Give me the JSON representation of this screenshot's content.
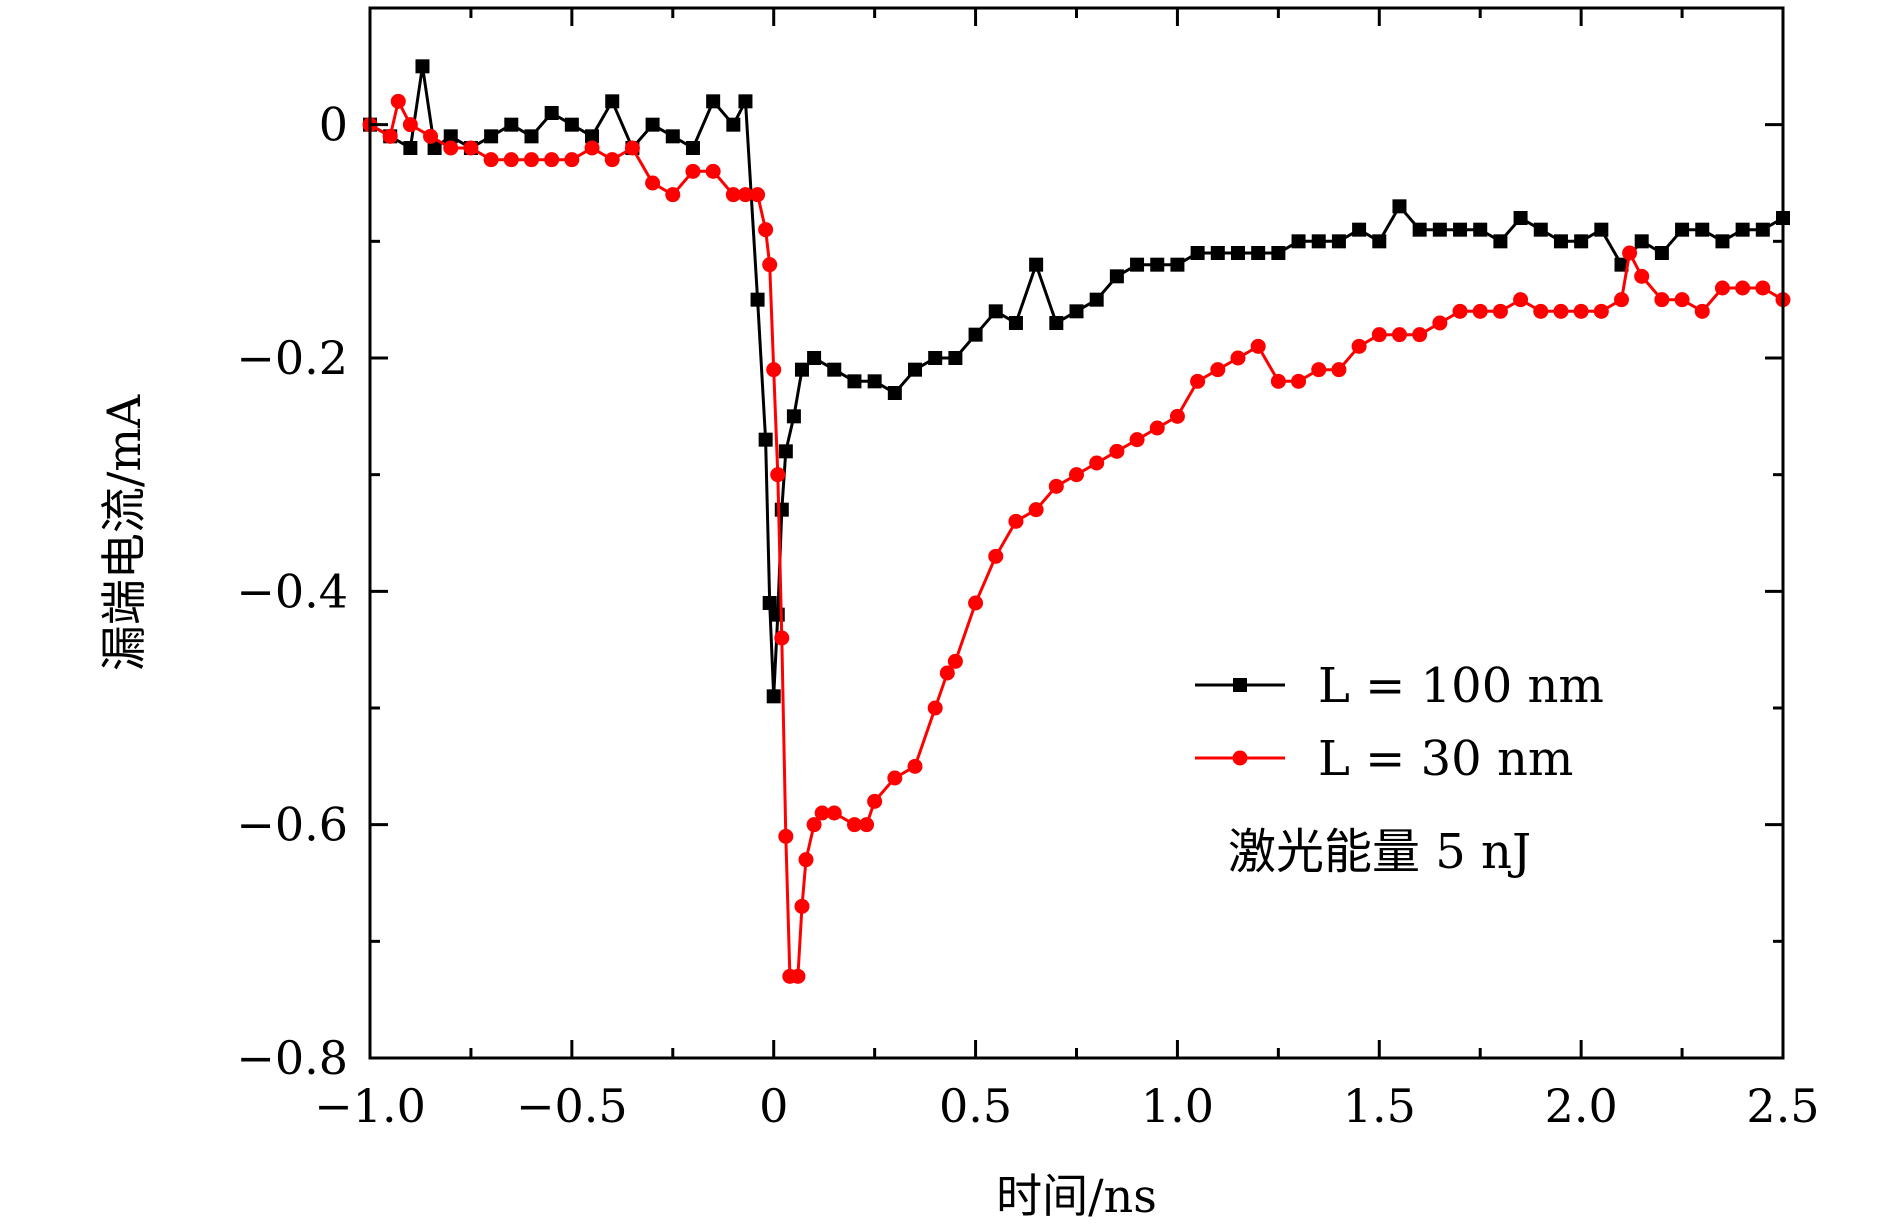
{
  "chart_data": {
    "type": "line",
    "xlabel": "时间/ns",
    "ylabel": "漏端电流/mA",
    "xlim": [
      -1.0,
      2.5
    ],
    "ylim": [
      -0.8,
      0.1
    ],
    "x_ticks": [
      -1.0,
      -0.5,
      0,
      0.5,
      1.0,
      1.5,
      2.0,
      2.5
    ],
    "x_tick_labels": [
      "−1.0",
      "−0.5",
      "0",
      "0.5",
      "1.0",
      "1.5",
      "2.0",
      "2.5"
    ],
    "y_ticks": [
      0,
      -0.2,
      -0.4,
      -0.6,
      -0.8
    ],
    "y_tick_labels": [
      "0",
      "−0.2",
      "−0.4",
      "−0.6",
      "−0.8"
    ],
    "grid": false,
    "legend_position": "lower-right",
    "annotation": "激光能量 5 nJ",
    "series": [
      {
        "name": "L = 100 nm",
        "color": "#000000",
        "marker": "square",
        "points": [
          [
            -1.0,
            0.0
          ],
          [
            -0.95,
            -0.01
          ],
          [
            -0.9,
            -0.02
          ],
          [
            -0.87,
            0.05
          ],
          [
            -0.84,
            -0.02
          ],
          [
            -0.8,
            -0.01
          ],
          [
            -0.75,
            -0.02
          ],
          [
            -0.7,
            -0.01
          ],
          [
            -0.65,
            0.0
          ],
          [
            -0.6,
            -0.01
          ],
          [
            -0.55,
            0.01
          ],
          [
            -0.5,
            0.0
          ],
          [
            -0.45,
            -0.01
          ],
          [
            -0.4,
            0.02
          ],
          [
            -0.35,
            -0.02
          ],
          [
            -0.3,
            0.0
          ],
          [
            -0.25,
            -0.01
          ],
          [
            -0.2,
            -0.02
          ],
          [
            -0.15,
            0.02
          ],
          [
            -0.1,
            0.0
          ],
          [
            -0.07,
            0.02
          ],
          [
            -0.04,
            -0.15
          ],
          [
            -0.02,
            -0.27
          ],
          [
            -0.01,
            -0.41
          ],
          [
            0.0,
            -0.49
          ],
          [
            0.01,
            -0.42
          ],
          [
            0.02,
            -0.33
          ],
          [
            0.03,
            -0.28
          ],
          [
            0.05,
            -0.25
          ],
          [
            0.07,
            -0.21
          ],
          [
            0.1,
            -0.2
          ],
          [
            0.15,
            -0.21
          ],
          [
            0.2,
            -0.22
          ],
          [
            0.25,
            -0.22
          ],
          [
            0.3,
            -0.23
          ],
          [
            0.35,
            -0.21
          ],
          [
            0.4,
            -0.2
          ],
          [
            0.45,
            -0.2
          ],
          [
            0.5,
            -0.18
          ],
          [
            0.55,
            -0.16
          ],
          [
            0.6,
            -0.17
          ],
          [
            0.65,
            -0.12
          ],
          [
            0.7,
            -0.17
          ],
          [
            0.75,
            -0.16
          ],
          [
            0.8,
            -0.15
          ],
          [
            0.85,
            -0.13
          ],
          [
            0.9,
            -0.12
          ],
          [
            0.95,
            -0.12
          ],
          [
            1.0,
            -0.12
          ],
          [
            1.05,
            -0.11
          ],
          [
            1.1,
            -0.11
          ],
          [
            1.15,
            -0.11
          ],
          [
            1.2,
            -0.11
          ],
          [
            1.25,
            -0.11
          ],
          [
            1.3,
            -0.1
          ],
          [
            1.35,
            -0.1
          ],
          [
            1.4,
            -0.1
          ],
          [
            1.45,
            -0.09
          ],
          [
            1.5,
            -0.1
          ],
          [
            1.55,
            -0.07
          ],
          [
            1.6,
            -0.09
          ],
          [
            1.65,
            -0.09
          ],
          [
            1.7,
            -0.09
          ],
          [
            1.75,
            -0.09
          ],
          [
            1.8,
            -0.1
          ],
          [
            1.85,
            -0.08
          ],
          [
            1.9,
            -0.09
          ],
          [
            1.95,
            -0.1
          ],
          [
            2.0,
            -0.1
          ],
          [
            2.05,
            -0.09
          ],
          [
            2.1,
            -0.12
          ],
          [
            2.15,
            -0.1
          ],
          [
            2.2,
            -0.11
          ],
          [
            2.25,
            -0.09
          ],
          [
            2.3,
            -0.09
          ],
          [
            2.35,
            -0.1
          ],
          [
            2.4,
            -0.09
          ],
          [
            2.45,
            -0.09
          ],
          [
            2.5,
            -0.08
          ]
        ]
      },
      {
        "name": "L = 30 nm",
        "color": "#ff0000",
        "marker": "circle",
        "points": [
          [
            -1.0,
            0.0
          ],
          [
            -0.95,
            -0.01
          ],
          [
            -0.93,
            0.02
          ],
          [
            -0.9,
            0.0
          ],
          [
            -0.85,
            -0.01
          ],
          [
            -0.8,
            -0.02
          ],
          [
            -0.75,
            -0.02
          ],
          [
            -0.7,
            -0.03
          ],
          [
            -0.65,
            -0.03
          ],
          [
            -0.6,
            -0.03
          ],
          [
            -0.55,
            -0.03
          ],
          [
            -0.5,
            -0.03
          ],
          [
            -0.45,
            -0.02
          ],
          [
            -0.4,
            -0.03
          ],
          [
            -0.35,
            -0.02
          ],
          [
            -0.3,
            -0.05
          ],
          [
            -0.25,
            -0.06
          ],
          [
            -0.2,
            -0.04
          ],
          [
            -0.15,
            -0.04
          ],
          [
            -0.1,
            -0.06
          ],
          [
            -0.07,
            -0.06
          ],
          [
            -0.04,
            -0.06
          ],
          [
            -0.02,
            -0.09
          ],
          [
            -0.01,
            -0.12
          ],
          [
            0.0,
            -0.21
          ],
          [
            0.01,
            -0.3
          ],
          [
            0.02,
            -0.44
          ],
          [
            0.03,
            -0.61
          ],
          [
            0.04,
            -0.73
          ],
          [
            0.06,
            -0.73
          ],
          [
            0.07,
            -0.67
          ],
          [
            0.08,
            -0.63
          ],
          [
            0.1,
            -0.6
          ],
          [
            0.12,
            -0.59
          ],
          [
            0.15,
            -0.59
          ],
          [
            0.2,
            -0.6
          ],
          [
            0.23,
            -0.6
          ],
          [
            0.25,
            -0.58
          ],
          [
            0.3,
            -0.56
          ],
          [
            0.35,
            -0.55
          ],
          [
            0.4,
            -0.5
          ],
          [
            0.43,
            -0.47
          ],
          [
            0.45,
            -0.46
          ],
          [
            0.5,
            -0.41
          ],
          [
            0.55,
            -0.37
          ],
          [
            0.6,
            -0.34
          ],
          [
            0.65,
            -0.33
          ],
          [
            0.7,
            -0.31
          ],
          [
            0.75,
            -0.3
          ],
          [
            0.8,
            -0.29
          ],
          [
            0.85,
            -0.28
          ],
          [
            0.9,
            -0.27
          ],
          [
            0.95,
            -0.26
          ],
          [
            1.0,
            -0.25
          ],
          [
            1.05,
            -0.22
          ],
          [
            1.1,
            -0.21
          ],
          [
            1.15,
            -0.2
          ],
          [
            1.2,
            -0.19
          ],
          [
            1.25,
            -0.22
          ],
          [
            1.3,
            -0.22
          ],
          [
            1.35,
            -0.21
          ],
          [
            1.4,
            -0.21
          ],
          [
            1.45,
            -0.19
          ],
          [
            1.5,
            -0.18
          ],
          [
            1.55,
            -0.18
          ],
          [
            1.6,
            -0.18
          ],
          [
            1.65,
            -0.17
          ],
          [
            1.7,
            -0.16
          ],
          [
            1.75,
            -0.16
          ],
          [
            1.8,
            -0.16
          ],
          [
            1.85,
            -0.15
          ],
          [
            1.9,
            -0.16
          ],
          [
            1.95,
            -0.16
          ],
          [
            2.0,
            -0.16
          ],
          [
            2.05,
            -0.16
          ],
          [
            2.1,
            -0.15
          ],
          [
            2.12,
            -0.11
          ],
          [
            2.15,
            -0.13
          ],
          [
            2.2,
            -0.15
          ],
          [
            2.25,
            -0.15
          ],
          [
            2.3,
            -0.16
          ],
          [
            2.35,
            -0.14
          ],
          [
            2.4,
            -0.14
          ],
          [
            2.45,
            -0.14
          ],
          [
            2.5,
            -0.15
          ]
        ]
      }
    ]
  }
}
